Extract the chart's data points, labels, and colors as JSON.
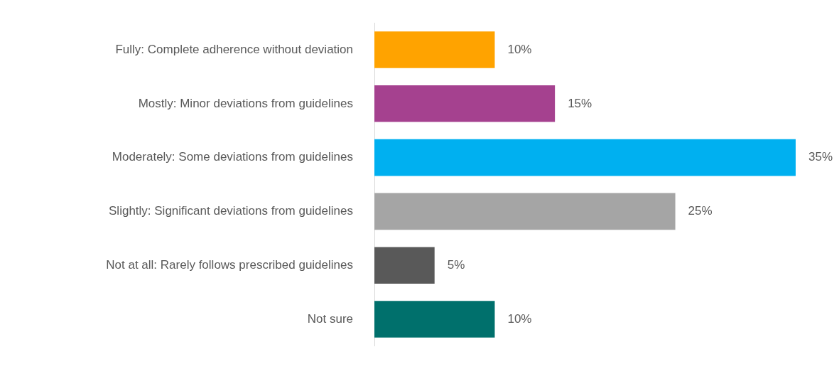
{
  "chart_data": {
    "type": "bar",
    "orientation": "horizontal",
    "categories": [
      "Fully: Complete adherence without deviation",
      "Mostly: Minor deviations from guidelines",
      "Moderately: Some deviations from guidelines",
      "Slightly: Significant deviations from guidelines",
      "Not at all: Rarely follows prescribed guidelines",
      "Not sure"
    ],
    "values": [
      10,
      15,
      35,
      25,
      5,
      10
    ],
    "value_labels": [
      "10%",
      "15%",
      "35%",
      "25%",
      "5%",
      "10%"
    ],
    "colors": [
      "#ffa300",
      "#a5418f",
      "#00b0f0",
      "#a5a5a5",
      "#595959",
      "#00706c"
    ],
    "grid": false,
    "legend": false
  }
}
